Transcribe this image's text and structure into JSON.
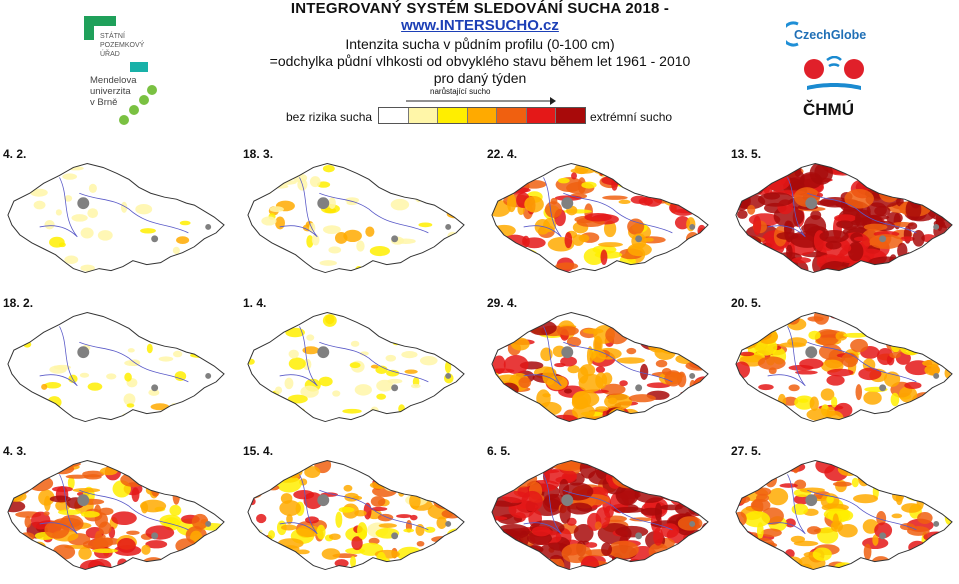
{
  "header": {
    "title": "INTEGROVANÝ SYSTÉM SLEDOVÁNÍ SUCHA 2018 -",
    "link": "www.INTERSUCHO.cz",
    "subtitle_line1": "Intenzita sucha v půdním profilu (0-100 cm)",
    "subtitle_line2": "=odchylka půdní vlhkosti od obvyklého stavu během let 1961 - 2010",
    "subtitle_line3": "pro daný týden"
  },
  "legend": {
    "left_label": "bez rizika sucha",
    "right_label": "extrémní sucho",
    "arrow_label": "narůstající sucho",
    "colors": [
      "#ffffff",
      "#fff6a8",
      "#ffee00",
      "#ffaa00",
      "#f06010",
      "#e41818",
      "#a80a0a"
    ]
  },
  "logos": {
    "spu": [
      "STÁTNÍ",
      "POZEMKOVÝ",
      "ÚŘAD"
    ],
    "mendelu": [
      "Mendelova",
      "univerzita",
      "v Brně"
    ],
    "czechglobe": "CzechGlobe",
    "chmu": "ČHMÚ"
  },
  "panels": [
    {
      "date": "4. 2.",
      "intensity": 0.05
    },
    {
      "date": "18. 3.",
      "intensity": 0.18
    },
    {
      "date": "22. 4.",
      "intensity": 0.55
    },
    {
      "date": "13. 5.",
      "intensity": 0.9
    },
    {
      "date": "18. 2.",
      "intensity": 0.1
    },
    {
      "date": "1. 4.",
      "intensity": 0.15
    },
    {
      "date": "29. 4.",
      "intensity": 0.62
    },
    {
      "date": "20. 5.",
      "intensity": 0.5
    },
    {
      "date": "4. 3.",
      "intensity": 0.55
    },
    {
      "date": "15. 4.",
      "intensity": 0.45
    },
    {
      "date": "6. 5.",
      "intensity": 0.82
    },
    {
      "date": "27. 5.",
      "intensity": 0.5
    }
  ]
}
